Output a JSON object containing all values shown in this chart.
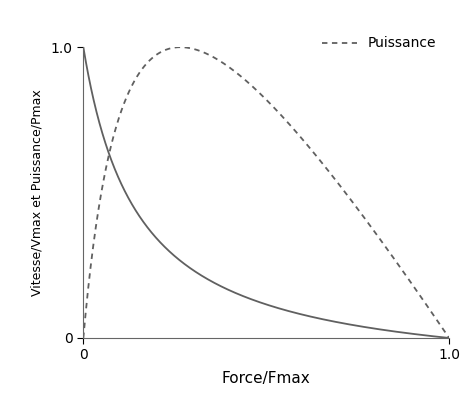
{
  "title": "",
  "xlabel": "Force/Fmax",
  "ylabel": "Vitesse/Vmax et Puissance/Pmax",
  "xlim": [
    0,
    1.0
  ],
  "ylim": [
    0,
    1.0
  ],
  "xticks": [
    0,
    1.0
  ],
  "yticks": [
    0,
    1.0
  ],
  "legend_label_puissance": "Puissance",
  "curve_color": "#606060",
  "background_color": "#ffffff",
  "hill_a": 0.15,
  "n_points": 1000,
  "fv_linewidth": 1.3,
  "pw_linewidth": 1.3,
  "legend_fontsize": 10,
  "xlabel_fontsize": 11,
  "ylabel_fontsize": 9
}
